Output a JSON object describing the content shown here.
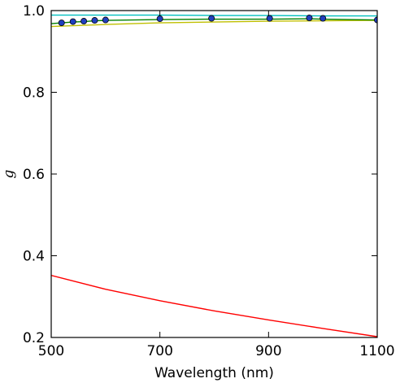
{
  "chart_data": {
    "type": "line",
    "title": "",
    "xlabel": "Wavelength (nm)",
    "ylabel": "g",
    "xlim": [
      500,
      1100
    ],
    "ylim": [
      0.2,
      1.0
    ],
    "x_ticks": [
      "500",
      "700",
      "900",
      "1100"
    ],
    "x_tick_values": [
      500,
      700,
      900,
      1100
    ],
    "y_ticks": [
      "0.2",
      "0.4",
      "0.6",
      "0.8",
      "1.0"
    ],
    "y_tick_values": [
      0.2,
      0.4,
      0.6,
      0.8,
      1.0
    ],
    "grid": false,
    "legend": "none",
    "series": [
      {
        "color": "#ff0000",
        "style": "line",
        "x": [
          500,
          600,
          700,
          800,
          900,
          1000,
          1100
        ],
        "y": [
          0.352,
          0.318,
          0.29,
          0.265,
          0.243,
          0.222,
          0.202
        ]
      },
      {
        "color": "#00bfbf",
        "style": "line",
        "x": [
          500,
          600,
          700,
          800,
          900,
          1000,
          1100
        ],
        "y": [
          0.989,
          0.989,
          0.989,
          0.988,
          0.988,
          0.987,
          0.987
        ]
      },
      {
        "color": "#bfbf00",
        "style": "line",
        "x": [
          500,
          600,
          700,
          800,
          900,
          1000,
          1100
        ],
        "y": [
          0.961,
          0.966,
          0.97,
          0.972,
          0.974,
          0.975,
          0.976
        ]
      },
      {
        "color": "#008000",
        "style": "line",
        "x": [
          500,
          520,
          540,
          560,
          580,
          600,
          700,
          795,
          900,
          975,
          1000,
          1100
        ],
        "y": [
          0.968,
          0.97,
          0.972,
          0.973,
          0.975,
          0.976,
          0.978,
          0.979,
          0.979,
          0.98,
          0.979,
          0.977
        ]
      },
      {
        "color": "#1f3fbf",
        "style": "markers",
        "x": [
          519,
          540,
          560,
          580,
          600,
          700,
          795,
          902,
          975,
          1000,
          1100
        ],
        "y": [
          0.97,
          0.973,
          0.974,
          0.976,
          0.977,
          0.98,
          0.981,
          0.981,
          0.982,
          0.981,
          0.977
        ]
      }
    ]
  }
}
